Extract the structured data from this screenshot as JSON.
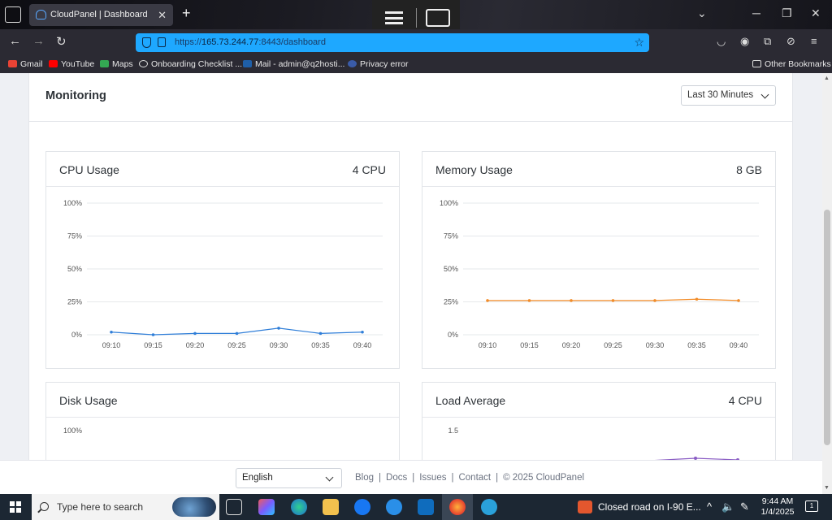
{
  "browser": {
    "tab_title": "CloudPanel | Dashboard",
    "url_prefix": "https://",
    "url_host": "165.73.244.77",
    "url_rest": ":8443/dashboard",
    "bookmarks": [
      "Gmail",
      "YouTube",
      "Maps",
      "Onboarding Checklist ...",
      "Mail - admin@q2hosti...",
      "Privacy error"
    ],
    "other_bookmarks": "Other Bookmarks"
  },
  "monitoring": {
    "title": "Monitoring",
    "range": "Last 30 Minutes"
  },
  "cards": {
    "cpu": {
      "title": "CPU Usage",
      "badge": "4 CPU"
    },
    "memory": {
      "title": "Memory Usage",
      "badge": "8 GB"
    },
    "disk": {
      "title": "Disk Usage",
      "badge": ""
    },
    "load": {
      "title": "Load Average",
      "badge": "4 CPU"
    }
  },
  "chart_data": [
    {
      "type": "line",
      "title": "CPU Usage",
      "x": [
        "09:10",
        "09:15",
        "09:20",
        "09:25",
        "09:30",
        "09:35",
        "09:40"
      ],
      "yticks": [
        "100%",
        "75%",
        "50%",
        "25%",
        "0%"
      ],
      "ylim": [
        0,
        100
      ],
      "series": [
        {
          "values": [
            2,
            0,
            1,
            1,
            5,
            1,
            2
          ],
          "color": "#2f7ed8"
        }
      ]
    },
    {
      "type": "line",
      "title": "Memory Usage",
      "x": [
        "09:10",
        "09:15",
        "09:20",
        "09:25",
        "09:30",
        "09:35",
        "09:40"
      ],
      "yticks": [
        "100%",
        "75%",
        "50%",
        "25%",
        "0%"
      ],
      "ylim": [
        0,
        100
      ],
      "series": [
        {
          "values": [
            26,
            26,
            26,
            26,
            26,
            27,
            26
          ],
          "color": "#f28c28"
        }
      ]
    },
    {
      "type": "line",
      "title": "Disk Usage",
      "yticks": [
        "100%"
      ],
      "ylim": [
        0,
        100
      ],
      "series": []
    },
    {
      "type": "line",
      "title": "Load Average",
      "yticks": [
        "1.5"
      ],
      "series": []
    }
  ],
  "footer": {
    "language": "English",
    "links": [
      "Blog",
      "Docs",
      "Issues",
      "Contact"
    ],
    "copyright": "© 2025  CloudPanel"
  },
  "taskbar": {
    "search_placeholder": "Type here to search",
    "news": "Closed road on I-90 E...",
    "time": "9:44 AM",
    "date": "1/4/2025",
    "notifications": "1"
  }
}
